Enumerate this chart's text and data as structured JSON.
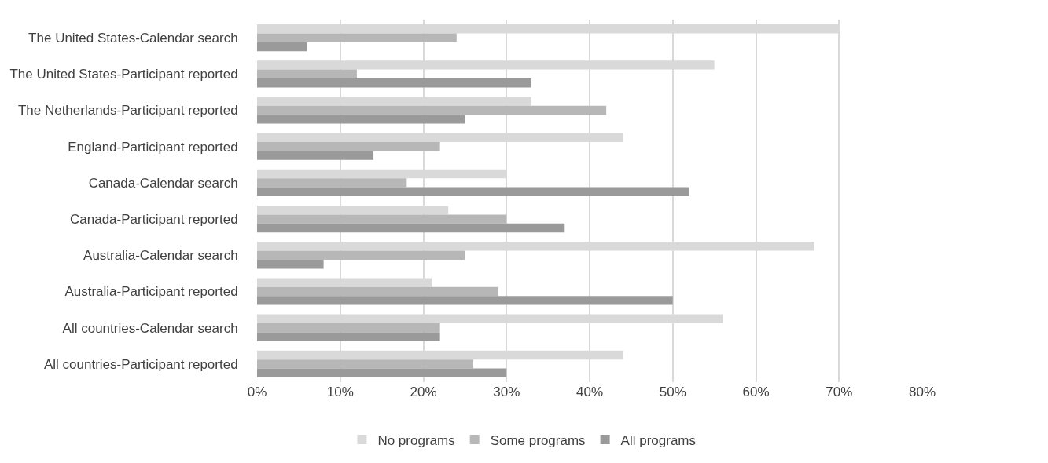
{
  "chart_data": {
    "type": "bar",
    "orientation": "horizontal",
    "categories": [
      "The United States-Calendar search",
      "The United States-Participant reported",
      "The Netherlands-Participant reported",
      "England-Participant reported",
      "Canada-Calendar search",
      "Canada-Participant reported",
      "Australia-Calendar search",
      "Australia-Participant reported",
      "All countries-Calendar search",
      "All countries-Participant reported"
    ],
    "series": [
      {
        "name": "No programs",
        "color": "#d9d9d9",
        "values": [
          70,
          55,
          33,
          44,
          30,
          23,
          67,
          21,
          56,
          44
        ]
      },
      {
        "name": "Some programs",
        "color": "#b7b7b7",
        "values": [
          24,
          12,
          42,
          22,
          18,
          30,
          25,
          29,
          22,
          26
        ]
      },
      {
        "name": "All programs",
        "color": "#9a9a9a",
        "values": [
          6,
          33,
          25,
          14,
          52,
          37,
          8,
          50,
          22,
          30
        ]
      }
    ],
    "xlim": [
      0,
      80
    ],
    "xticks": [
      {
        "value": 0,
        "label": "0%"
      },
      {
        "value": 10,
        "label": "10%"
      },
      {
        "value": 20,
        "label": "20%"
      },
      {
        "value": 30,
        "label": "30%"
      },
      {
        "value": 40,
        "label": "40%"
      },
      {
        "value": 50,
        "label": "50%"
      },
      {
        "value": 60,
        "label": "60%"
      },
      {
        "value": 70,
        "label": "70%"
      },
      {
        "value": 80,
        "label": "80%"
      }
    ],
    "grid": "x",
    "legend": "bottom"
  }
}
